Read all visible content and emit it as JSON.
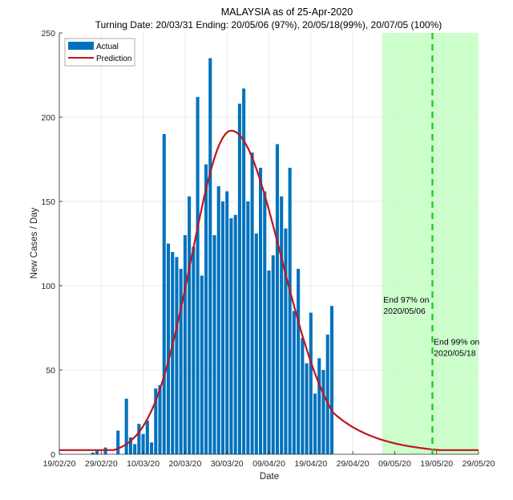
{
  "chart_data": {
    "type": "bar",
    "title": "MALAYSIA as of 25-Apr-2020",
    "subtitle": "Turning Date: 20/03/31  Ending: 20/05/06 (97%), 20/05/18(99%), 20/07/05 (100%)",
    "xlabel": "Date",
    "ylabel": "New Cases / Day",
    "ylim": [
      0,
      250
    ],
    "yticks": [
      0,
      50,
      100,
      150,
      200,
      250
    ],
    "x_range_days": [
      0,
      100
    ],
    "x_start_date": "2020-02-19",
    "xticks": [
      {
        "day": 0,
        "label": "19/02/20"
      },
      {
        "day": 10,
        "label": "29/02/20"
      },
      {
        "day": 20,
        "label": "10/03/20"
      },
      {
        "day": 30,
        "label": "20/03/20"
      },
      {
        "day": 40,
        "label": "30/03/20"
      },
      {
        "day": 50,
        "label": "09/04/20"
      },
      {
        "day": 60,
        "label": "19/04/20"
      },
      {
        "day": 70,
        "label": "29/04/20"
      },
      {
        "day": 80,
        "label": "09/05/20"
      },
      {
        "day": 90,
        "label": "19/05/20"
      },
      {
        "day": 100,
        "label": "29/05/20"
      }
    ],
    "grid": true,
    "legend": {
      "position": "top-left",
      "entries": [
        "Actual",
        "Prediction"
      ]
    },
    "series": [
      {
        "name": "Actual",
        "kind": "bar",
        "color": "#0072BD",
        "points": [
          {
            "day": 8,
            "value": 1
          },
          {
            "day": 9,
            "value": 2
          },
          {
            "day": 11,
            "value": 4
          },
          {
            "day": 14,
            "value": 14
          },
          {
            "day": 16,
            "value": 33
          },
          {
            "day": 17,
            "value": 10
          },
          {
            "day": 18,
            "value": 6
          },
          {
            "day": 19,
            "value": 18
          },
          {
            "day": 20,
            "value": 12
          },
          {
            "day": 21,
            "value": 20
          },
          {
            "day": 22,
            "value": 7
          },
          {
            "day": 23,
            "value": 39
          },
          {
            "day": 24,
            "value": 41
          },
          {
            "day": 25,
            "value": 190
          },
          {
            "day": 26,
            "value": 125
          },
          {
            "day": 27,
            "value": 120
          },
          {
            "day": 28,
            "value": 117
          },
          {
            "day": 29,
            "value": 110
          },
          {
            "day": 30,
            "value": 130
          },
          {
            "day": 31,
            "value": 153
          },
          {
            "day": 32,
            "value": 123
          },
          {
            "day": 33,
            "value": 212
          },
          {
            "day": 34,
            "value": 106
          },
          {
            "day": 35,
            "value": 172
          },
          {
            "day": 36,
            "value": 235
          },
          {
            "day": 37,
            "value": 130
          },
          {
            "day": 38,
            "value": 159
          },
          {
            "day": 39,
            "value": 150
          },
          {
            "day": 40,
            "value": 156
          },
          {
            "day": 41,
            "value": 140
          },
          {
            "day": 42,
            "value": 142
          },
          {
            "day": 43,
            "value": 208
          },
          {
            "day": 44,
            "value": 217
          },
          {
            "day": 45,
            "value": 150
          },
          {
            "day": 46,
            "value": 179
          },
          {
            "day": 47,
            "value": 131
          },
          {
            "day": 48,
            "value": 170
          },
          {
            "day": 49,
            "value": 156
          },
          {
            "day": 50,
            "value": 109
          },
          {
            "day": 51,
            "value": 118
          },
          {
            "day": 52,
            "value": 184
          },
          {
            "day": 53,
            "value": 153
          },
          {
            "day": 54,
            "value": 134
          },
          {
            "day": 55,
            "value": 170
          },
          {
            "day": 56,
            "value": 85
          },
          {
            "day": 57,
            "value": 110
          },
          {
            "day": 58,
            "value": 69
          },
          {
            "day": 59,
            "value": 54
          },
          {
            "day": 60,
            "value": 84
          },
          {
            "day": 61,
            "value": 36
          },
          {
            "day": 62,
            "value": 57
          },
          {
            "day": 63,
            "value": 50
          },
          {
            "day": 64,
            "value": 71
          },
          {
            "day": 65,
            "value": 88
          }
        ]
      },
      {
        "name": "Prediction",
        "kind": "line",
        "color": "#C0141E",
        "model": "gaussian-like fit",
        "peak_day": 41,
        "peak_value": 192,
        "sigma_left_days": 9.5,
        "sigma_right_days": 12,
        "tail_decay_days": 11,
        "value_at_day_0": 2.5,
        "value_at_day_100": 2.5
      }
    ],
    "shaded_region": {
      "from_day": 77,
      "to_day": 100,
      "color": "#CCFFCC"
    },
    "vline": {
      "day": 89,
      "style": "dashed",
      "color": "#22CC22"
    },
    "annotations": [
      {
        "lines": [
          "End 97% on",
          "2020/05/06"
        ],
        "day": 77.3,
        "value": 90
      },
      {
        "lines": [
          "End 99% on",
          "2020/05/18"
        ],
        "day": 89.3,
        "value": 65
      }
    ]
  }
}
